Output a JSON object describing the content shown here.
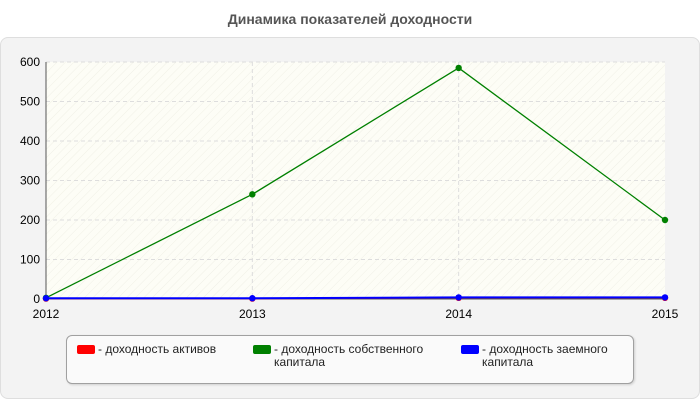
{
  "chart_data": {
    "type": "line",
    "title": "Динамика показателей доходности",
    "categories": [
      "2012",
      "2013",
      "2014",
      "2015"
    ],
    "ylim": [
      0,
      600
    ],
    "yticks": [
      0,
      100,
      200,
      300,
      400,
      500,
      600
    ],
    "grid": true,
    "legend_placement": "bottom",
    "series": [
      {
        "name": "- доходность активов",
        "color": "#ff0000",
        "values": [
          1,
          1,
          3,
          3
        ]
      },
      {
        "name": "- доходность собственного капитала",
        "color": "#008000",
        "values": [
          3,
          265,
          585,
          200
        ]
      },
      {
        "name": "- доходность заемного капитала",
        "color": "#0000ff",
        "values": [
          2,
          2,
          4,
          4
        ]
      }
    ]
  }
}
